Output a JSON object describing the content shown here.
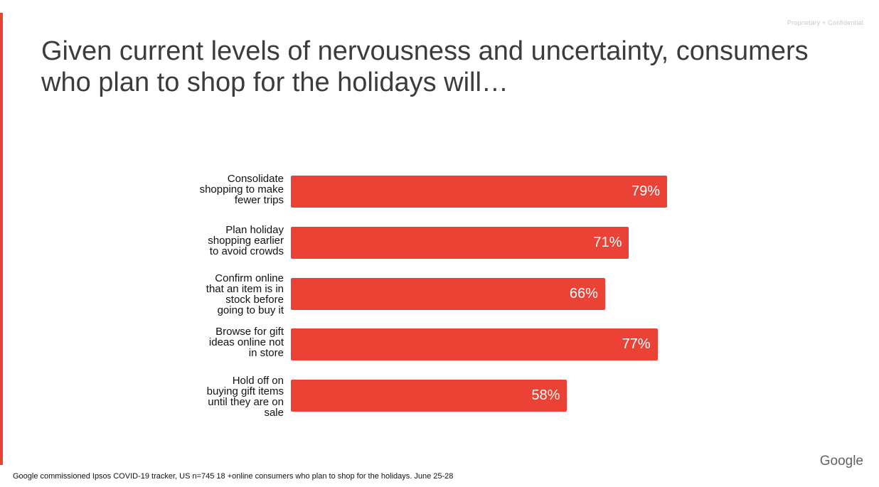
{
  "confidential_label": "Proprietary + Confidential",
  "title": "Given current levels of nervousness and uncertainty, consumers who plan to shop for the holidays will…",
  "brand": "Google",
  "source_note": "Google commissioned Ipsos COVID-19 tracker, US  n=745 18 +online consumers who plan to shop for the holidays. June 25-28",
  "colors": {
    "accent": "#ea4335",
    "bar": "#ea4335",
    "bar_text": "#ffffff"
  },
  "chart_data": {
    "type": "bar",
    "orientation": "horizontal",
    "title": "",
    "xlabel": "",
    "ylabel": "",
    "grid": false,
    "legend": "none",
    "xlim": [
      0,
      100
    ],
    "value_suffix": "%",
    "categories": [
      [
        "Consolidate",
        "shopping to make",
        "fewer trips"
      ],
      [
        "Plan holiday",
        "shopping earlier",
        "to avoid crowds"
      ],
      [
        "Confirm online",
        "that an item is in",
        "stock before",
        "going to buy it"
      ],
      [
        "Browse for gift",
        "ideas online not",
        "in store"
      ],
      [
        "Hold off on",
        "buying gift items",
        "until they are on",
        "sale"
      ]
    ],
    "values": [
      79,
      71,
      66,
      77,
      58
    ],
    "data_labels": [
      "79%",
      "71%",
      "66%",
      "77%",
      "58%"
    ]
  }
}
